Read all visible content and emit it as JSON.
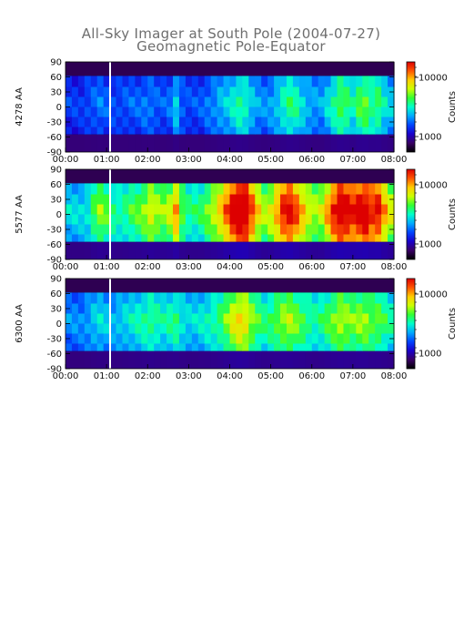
{
  "chart_data": {
    "type": "heatmap",
    "title": "All-Sky Imager at South Pole (2004-07-27)",
    "subtitle": "Geomagnetic Pole-Equator",
    "x_ticks": [
      "00:00",
      "01:00",
      "02:00",
      "03:00",
      "04:00",
      "05:00",
      "06:00",
      "07:00",
      "08:00"
    ],
    "xlim": [
      "00:00",
      "08:00"
    ],
    "y_ticks": [
      90,
      60,
      30,
      0,
      -30,
      -60,
      -90
    ],
    "ylim": [
      -90,
      90
    ],
    "colorbar": {
      "label": "Counts",
      "ticks": [
        10000,
        1000
      ],
      "tick_labels": [
        "10000",
        "1000"
      ],
      "scale": "log"
    },
    "panels": [
      {
        "ylabel": "4278 AA",
        "intensity_profile": [
          0.22,
          0.22,
          0.22,
          0.24,
          0.26,
          0.28,
          0.26,
          0.24,
          0.24,
          0.25,
          0.26,
          0.26,
          0.28,
          0.28,
          0.26,
          0.25,
          0.27,
          0.36,
          0.26,
          0.24,
          0.24,
          0.25,
          0.28,
          0.3,
          0.34,
          0.36,
          0.4,
          0.44,
          0.42,
          0.36,
          0.32,
          0.3,
          0.32,
          0.36,
          0.42,
          0.46,
          0.44,
          0.38,
          0.34,
          0.32,
          0.32,
          0.38,
          0.44,
          0.5,
          0.48,
          0.42,
          0.5,
          0.52,
          0.46,
          0.48,
          0.4,
          0.36
        ]
      },
      {
        "ylabel": "5577 AA",
        "intensity_profile": [
          0.38,
          0.38,
          0.38,
          0.4,
          0.5,
          0.56,
          0.52,
          0.46,
          0.44,
          0.46,
          0.5,
          0.52,
          0.56,
          0.62,
          0.58,
          0.56,
          0.6,
          0.72,
          0.52,
          0.46,
          0.46,
          0.48,
          0.54,
          0.6,
          0.68,
          0.78,
          0.9,
          0.96,
          0.94,
          0.8,
          0.66,
          0.58,
          0.62,
          0.72,
          0.84,
          0.88,
          0.8,
          0.7,
          0.62,
          0.58,
          0.6,
          0.72,
          0.84,
          0.92,
          0.9,
          0.86,
          0.9,
          0.92,
          0.84,
          0.86,
          0.72,
          0.62
        ]
      },
      {
        "ylabel": "6300 AA",
        "intensity_profile": [
          0.3,
          0.3,
          0.3,
          0.32,
          0.36,
          0.38,
          0.36,
          0.34,
          0.36,
          0.38,
          0.4,
          0.42,
          0.44,
          0.46,
          0.44,
          0.42,
          0.44,
          0.46,
          0.4,
          0.38,
          0.38,
          0.4,
          0.42,
          0.44,
          0.48,
          0.54,
          0.62,
          0.66,
          0.64,
          0.56,
          0.5,
          0.46,
          0.48,
          0.52,
          0.56,
          0.58,
          0.54,
          0.5,
          0.46,
          0.44,
          0.46,
          0.5,
          0.54,
          0.58,
          0.56,
          0.54,
          0.56,
          0.56,
          0.52,
          0.52,
          0.48,
          0.44
        ]
      }
    ],
    "colors": {
      "cmap": [
        "#000000",
        "#3a0066",
        "#1a00cc",
        "#0044ff",
        "#00aaff",
        "#00ffcc",
        "#33ff33",
        "#ccff00",
        "#ffcc00",
        "#ff5500",
        "#dd0000"
      ],
      "background": "#ffffff",
      "text": "#6e6e6e"
    }
  }
}
